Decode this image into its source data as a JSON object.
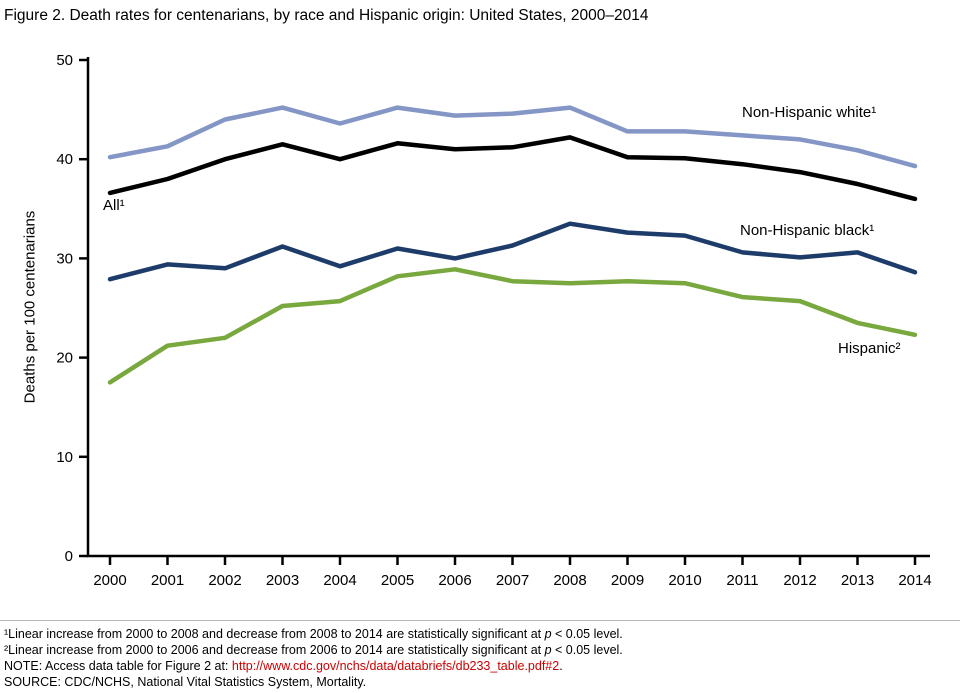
{
  "figure": {
    "title": "Figure 2. Death rates for centenarians, by race and Hispanic origin: United States, 2000–2014"
  },
  "chart_data": {
    "type": "line",
    "x": [
      2000,
      2001,
      2002,
      2003,
      2004,
      2005,
      2006,
      2007,
      2008,
      2009,
      2010,
      2011,
      2012,
      2013,
      2014
    ],
    "series": [
      {
        "name": "non-hispanic-white",
        "label": "Non-Hispanic white¹",
        "color": "#8396c5",
        "values": [
          40.2,
          41.3,
          44.0,
          45.2,
          43.6,
          45.2,
          44.4,
          44.6,
          45.2,
          42.8,
          42.8,
          42.4,
          42.0,
          40.9,
          39.3
        ]
      },
      {
        "name": "all",
        "label": "All¹",
        "color": "#000000",
        "values": [
          36.6,
          38.0,
          40.0,
          41.5,
          40.0,
          41.6,
          41.0,
          41.2,
          42.2,
          40.2,
          40.1,
          39.5,
          38.7,
          37.5,
          36.0
        ]
      },
      {
        "name": "non-hispanic-black",
        "label": "Non-Hispanic black¹",
        "color": "#1d3c6a",
        "values": [
          27.9,
          29.4,
          29.0,
          31.2,
          29.2,
          31.0,
          30.0,
          31.3,
          33.5,
          32.6,
          32.3,
          30.6,
          30.1,
          30.6,
          28.6
        ]
      },
      {
        "name": "hispanic",
        "label": "Hispanic²",
        "color": "#79a83e",
        "values": [
          17.5,
          21.2,
          22.0,
          25.2,
          25.7,
          28.2,
          28.9,
          27.7,
          27.5,
          27.7,
          27.5,
          26.1,
          25.7,
          23.5,
          22.3
        ]
      }
    ],
    "title": "Figure 2. Death rates for centenarians, by race and Hispanic origin: United States, 2000–2014",
    "xlabel": "",
    "ylabel": "Deaths per 100 centenarians",
    "ylim": [
      0,
      50
    ],
    "yticks": [
      0,
      10,
      20,
      30,
      40,
      50
    ],
    "grid": false,
    "legend": "inline-annotations"
  },
  "footnotes": {
    "fn1": {
      "pre": "¹Linear increase from 2000 to 2008 and decrease from 2008 to 2014 are statistically significant at ",
      "p": "p",
      "post": " < 0.05 level."
    },
    "fn2": {
      "pre": "²Linear increase from 2000 to 2006 and decrease from 2006 to 2014 are statistically significant at ",
      "p": "p",
      "post": " < 0.05 level."
    },
    "note": {
      "pre": "NOTE: Access data table for Figure 2 at: ",
      "link": "http://www.cdc.gov/nchs/data/databriefs/db233_table.pdf#2",
      "post": "."
    },
    "source": "SOURCE: CDC/NCHS, National Vital Statistics System, Mortality."
  }
}
